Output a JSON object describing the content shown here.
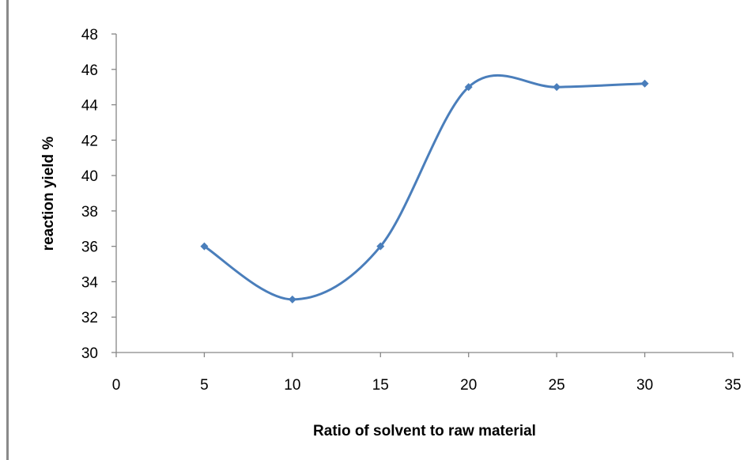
{
  "chart_data": {
    "type": "line",
    "title": "",
    "xlabel": "Ratio of solvent to raw material",
    "ylabel": "reaction yield %",
    "xlim": [
      0,
      35
    ],
    "ylim": [
      30,
      48
    ],
    "xticks": [
      0,
      5,
      10,
      15,
      20,
      25,
      30,
      35
    ],
    "yticks": [
      30,
      32,
      34,
      36,
      38,
      40,
      42,
      44,
      46,
      48
    ],
    "grid": false,
    "legend": "none",
    "smooth": true,
    "series": [
      {
        "x": [
          5,
          10,
          15,
          20,
          25,
          30
        ],
        "y": [
          36,
          33,
          36,
          45,
          45,
          45.2
        ],
        "color": "#4a7ebb",
        "marker": "diamond"
      }
    ]
  }
}
